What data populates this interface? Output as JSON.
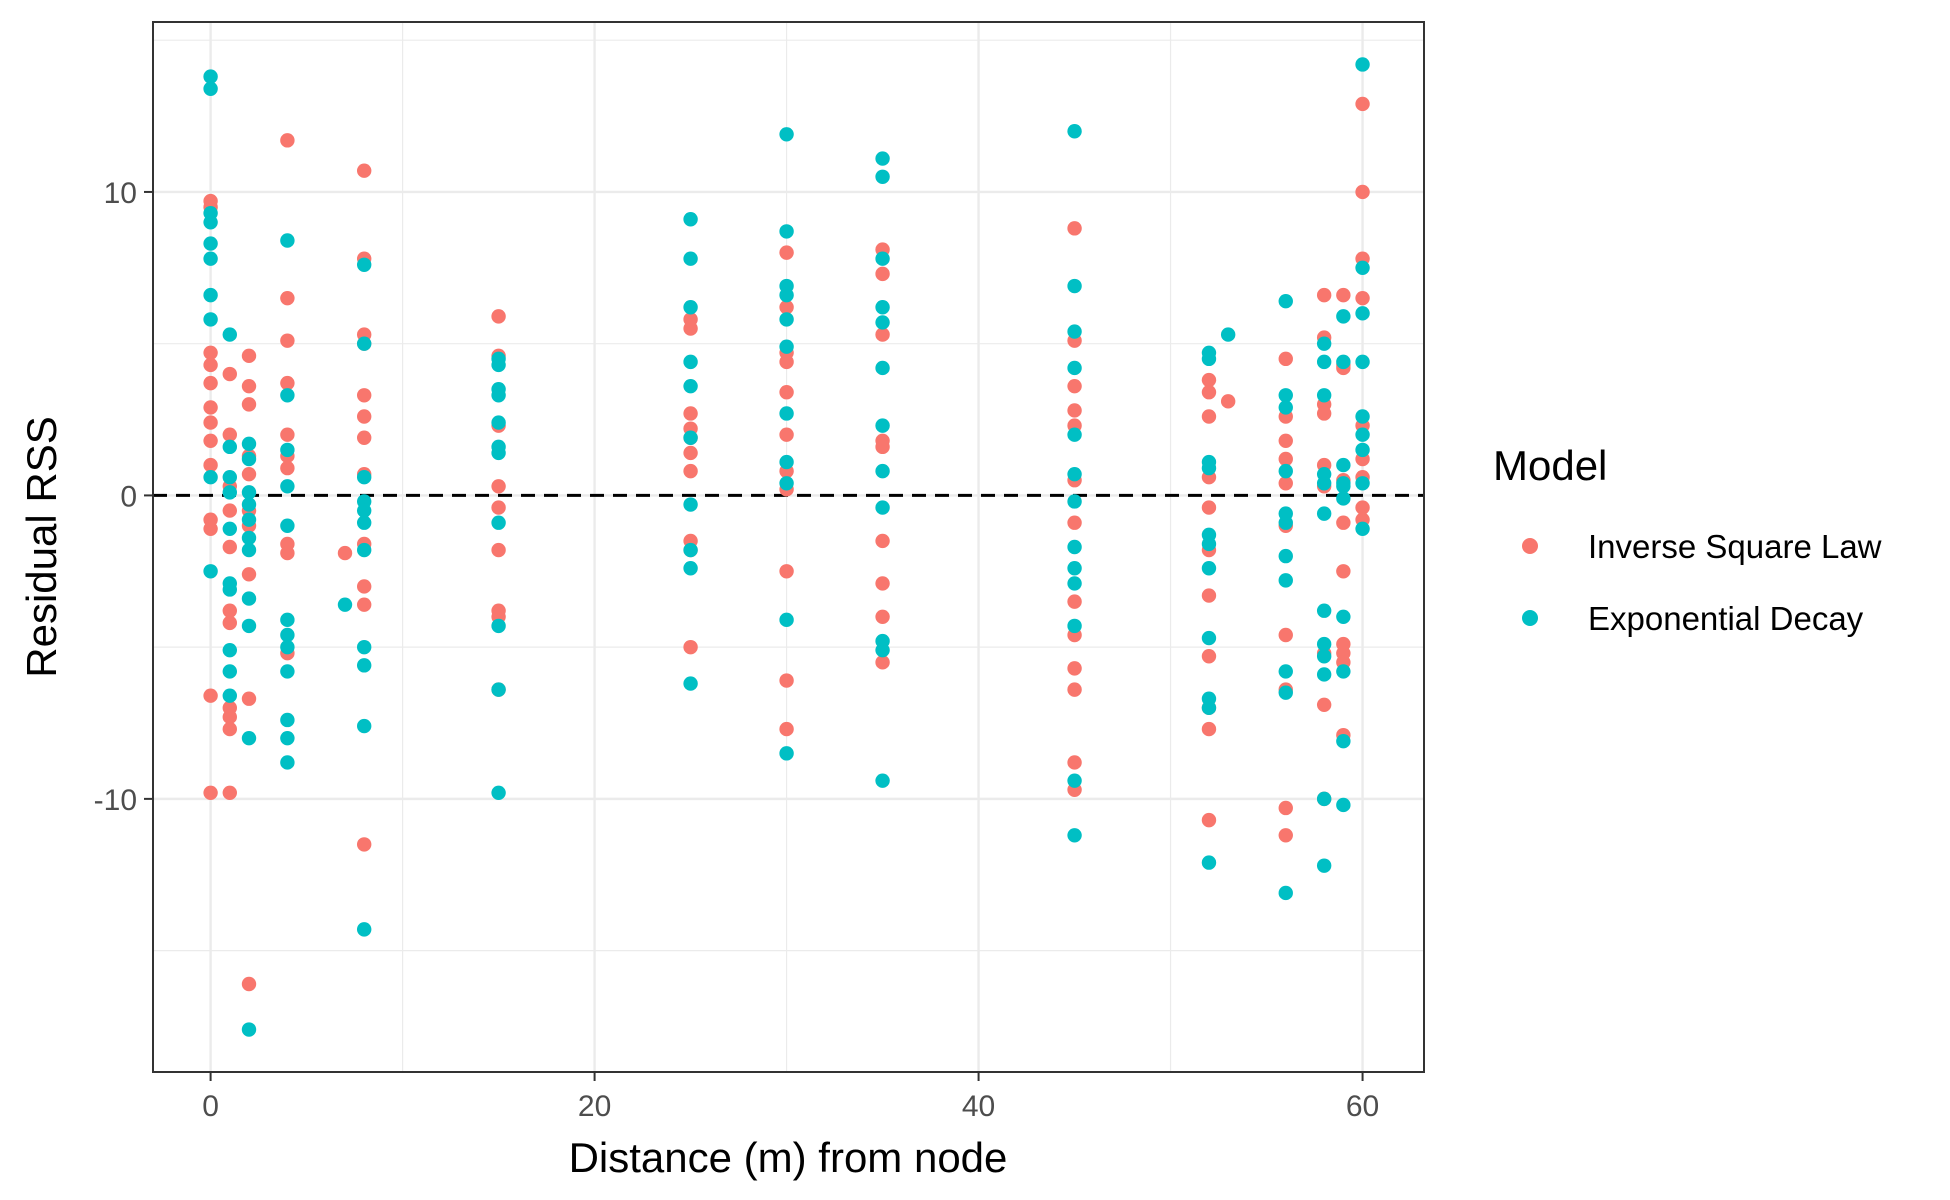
{
  "chart_data": {
    "type": "scatter",
    "title": "",
    "xlabel": "Distance (m) from node",
    "ylabel": "Residual RSS",
    "xlim": [
      -3,
      63.2
    ],
    "ylim": [
      -19,
      15.6
    ],
    "x_ticks": [
      0,
      20,
      40,
      60
    ],
    "y_ticks": [
      -10,
      0,
      10
    ],
    "x_tick_labels": [
      "0",
      "20",
      "40",
      "60"
    ],
    "y_tick_labels": [
      "-10",
      "0",
      "10"
    ],
    "grid": true,
    "reference_line": {
      "y": 0,
      "style": "dashed",
      "color": "#000000"
    },
    "legend": {
      "title": "Model",
      "placement": "right"
    },
    "series": [
      {
        "name": "Inverse Square Law",
        "color": "#F8766D",
        "points": [
          [
            0,
            9.7
          ],
          [
            0,
            9.5
          ],
          [
            0,
            4.7
          ],
          [
            0,
            4.3
          ],
          [
            0,
            3.7
          ],
          [
            0,
            2.9
          ],
          [
            0,
            2.4
          ],
          [
            0,
            1.8
          ],
          [
            0,
            1.0
          ],
          [
            0,
            -0.8
          ],
          [
            0,
            -1.1
          ],
          [
            0,
            -6.6
          ],
          [
            0,
            -9.8
          ],
          [
            1,
            4.0
          ],
          [
            1,
            2.0
          ],
          [
            1,
            0.3
          ],
          [
            1,
            -0.5
          ],
          [
            1,
            -1.7
          ],
          [
            1,
            -3.8
          ],
          [
            1,
            -4.2
          ],
          [
            1,
            -7.0
          ],
          [
            1,
            -7.3
          ],
          [
            1,
            -7.7
          ],
          [
            1,
            -9.8
          ],
          [
            2,
            4.6
          ],
          [
            2,
            3.6
          ],
          [
            2,
            3.0
          ],
          [
            2,
            1.3
          ],
          [
            2,
            0.7
          ],
          [
            2,
            -0.5
          ],
          [
            2,
            -1.0
          ],
          [
            2,
            -2.6
          ],
          [
            2,
            -6.7
          ],
          [
            2,
            -16.1
          ],
          [
            4,
            11.7
          ],
          [
            4,
            6.5
          ],
          [
            4,
            5.1
          ],
          [
            4,
            3.7
          ],
          [
            4,
            2.0
          ],
          [
            4,
            1.3
          ],
          [
            4,
            0.9
          ],
          [
            4,
            -1.6
          ],
          [
            4,
            -1.9
          ],
          [
            4,
            -5.2
          ],
          [
            7,
            -1.9
          ],
          [
            8,
            10.7
          ],
          [
            8,
            7.8
          ],
          [
            8,
            5.3
          ],
          [
            8,
            5.0
          ],
          [
            8,
            3.3
          ],
          [
            8,
            2.6
          ],
          [
            8,
            1.9
          ],
          [
            8,
            0.7
          ],
          [
            8,
            -1.6
          ],
          [
            8,
            -3.0
          ],
          [
            8,
            -3.6
          ],
          [
            8,
            -11.5
          ],
          [
            15,
            5.9
          ],
          [
            15,
            4.6
          ],
          [
            15,
            2.3
          ],
          [
            15,
            0.3
          ],
          [
            15,
            -0.4
          ],
          [
            15,
            -1.8
          ],
          [
            15,
            -3.8
          ],
          [
            15,
            -4.0
          ],
          [
            15,
            -6.4
          ],
          [
            25,
            5.8
          ],
          [
            25,
            5.5
          ],
          [
            25,
            2.7
          ],
          [
            25,
            2.2
          ],
          [
            25,
            1.9
          ],
          [
            25,
            1.4
          ],
          [
            25,
            0.8
          ],
          [
            25,
            -1.5
          ],
          [
            25,
            -1.8
          ],
          [
            25,
            -5.0
          ],
          [
            30,
            8.0
          ],
          [
            30,
            6.2
          ],
          [
            30,
            4.7
          ],
          [
            30,
            4.4
          ],
          [
            30,
            3.4
          ],
          [
            30,
            2.0
          ],
          [
            30,
            0.8
          ],
          [
            30,
            0.2
          ],
          [
            30,
            -2.5
          ],
          [
            30,
            -6.1
          ],
          [
            30,
            -7.7
          ],
          [
            35,
            8.1
          ],
          [
            35,
            7.3
          ],
          [
            35,
            5.3
          ],
          [
            35,
            1.8
          ],
          [
            35,
            1.6
          ],
          [
            35,
            -1.5
          ],
          [
            35,
            -2.9
          ],
          [
            35,
            -4.0
          ],
          [
            35,
            -5.5
          ],
          [
            45,
            8.8
          ],
          [
            45,
            5.1
          ],
          [
            45,
            3.6
          ],
          [
            45,
            2.8
          ],
          [
            45,
            2.3
          ],
          [
            45,
            0.5
          ],
          [
            45,
            -0.9
          ],
          [
            45,
            -3.5
          ],
          [
            45,
            -4.6
          ],
          [
            45,
            -5.7
          ],
          [
            45,
            -6.4
          ],
          [
            45,
            -8.8
          ],
          [
            45,
            -9.7
          ],
          [
            52,
            3.8
          ],
          [
            52,
            3.4
          ],
          [
            52,
            2.6
          ],
          [
            52,
            0.6
          ],
          [
            52,
            -0.4
          ],
          [
            52,
            -1.8
          ],
          [
            52,
            -3.3
          ],
          [
            52,
            -5.3
          ],
          [
            52,
            -7.0
          ],
          [
            52,
            -7.7
          ],
          [
            52,
            -10.7
          ],
          [
            53,
            3.1
          ],
          [
            56,
            4.5
          ],
          [
            56,
            2.6
          ],
          [
            56,
            1.8
          ],
          [
            56,
            1.2
          ],
          [
            56,
            0.4
          ],
          [
            56,
            -1.0
          ],
          [
            56,
            -4.6
          ],
          [
            56,
            -6.4
          ],
          [
            56,
            -10.3
          ],
          [
            56,
            -11.2
          ],
          [
            58,
            6.6
          ],
          [
            58,
            5.2
          ],
          [
            58,
            3.0
          ],
          [
            58,
            2.7
          ],
          [
            58,
            1.0
          ],
          [
            58,
            0.3
          ],
          [
            58,
            -5.2
          ],
          [
            58,
            -6.9
          ],
          [
            58,
            -10.0
          ],
          [
            59,
            6.6
          ],
          [
            59,
            4.3
          ],
          [
            59,
            4.2
          ],
          [
            59,
            0.5
          ],
          [
            59,
            -0.9
          ],
          [
            59,
            -2.5
          ],
          [
            59,
            -4.9
          ],
          [
            59,
            -5.2
          ],
          [
            59,
            -5.5
          ],
          [
            59,
            -7.9
          ],
          [
            60,
            12.9
          ],
          [
            60,
            10.0
          ],
          [
            60,
            7.8
          ],
          [
            60,
            6.5
          ],
          [
            60,
            2.3
          ],
          [
            60,
            1.2
          ],
          [
            60,
            0.6
          ],
          [
            60,
            -0.4
          ],
          [
            60,
            -0.8
          ]
        ]
      },
      {
        "name": "Exponential Decay",
        "color": "#00BFC4",
        "points": [
          [
            0,
            13.8
          ],
          [
            0,
            13.4
          ],
          [
            0,
            9.3
          ],
          [
            0,
            9.0
          ],
          [
            0,
            8.3
          ],
          [
            0,
            7.8
          ],
          [
            0,
            6.6
          ],
          [
            0,
            5.8
          ],
          [
            0,
            0.6
          ],
          [
            0,
            -2.5
          ],
          [
            1,
            5.3
          ],
          [
            1,
            1.6
          ],
          [
            1,
            0.6
          ],
          [
            1,
            0.1
          ],
          [
            1,
            -1.1
          ],
          [
            1,
            -2.9
          ],
          [
            1,
            -3.1
          ],
          [
            1,
            -5.1
          ],
          [
            1,
            -5.8
          ],
          [
            1,
            -6.6
          ],
          [
            2,
            1.7
          ],
          [
            2,
            1.2
          ],
          [
            2,
            0.1
          ],
          [
            2,
            -0.3
          ],
          [
            2,
            -0.8
          ],
          [
            2,
            -1.4
          ],
          [
            2,
            -1.8
          ],
          [
            2,
            -3.4
          ],
          [
            2,
            -4.3
          ],
          [
            2,
            -8.0
          ],
          [
            2,
            -17.6
          ],
          [
            4,
            8.4
          ],
          [
            4,
            3.3
          ],
          [
            4,
            1.5
          ],
          [
            4,
            0.3
          ],
          [
            4,
            -1.0
          ],
          [
            4,
            -4.1
          ],
          [
            4,
            -4.6
          ],
          [
            4,
            -5.0
          ],
          [
            4,
            -5.8
          ],
          [
            4,
            -7.4
          ],
          [
            4,
            -8.0
          ],
          [
            4,
            -8.8
          ],
          [
            7,
            -3.6
          ],
          [
            8,
            7.6
          ],
          [
            8,
            5.0
          ],
          [
            8,
            0.6
          ],
          [
            8,
            -0.2
          ],
          [
            8,
            -0.5
          ],
          [
            8,
            -0.9
          ],
          [
            8,
            -1.8
          ],
          [
            8,
            -5.0
          ],
          [
            8,
            -5.6
          ],
          [
            8,
            -7.6
          ],
          [
            8,
            -14.3
          ],
          [
            15,
            4.5
          ],
          [
            15,
            4.3
          ],
          [
            15,
            3.5
          ],
          [
            15,
            3.3
          ],
          [
            15,
            2.4
          ],
          [
            15,
            1.6
          ],
          [
            15,
            1.4
          ],
          [
            15,
            -0.9
          ],
          [
            15,
            -4.3
          ],
          [
            15,
            -6.4
          ],
          [
            15,
            -9.8
          ],
          [
            25,
            9.1
          ],
          [
            25,
            7.8
          ],
          [
            25,
            6.2
          ],
          [
            25,
            4.4
          ],
          [
            25,
            3.6
          ],
          [
            25,
            1.9
          ],
          [
            25,
            -0.3
          ],
          [
            25,
            -1.8
          ],
          [
            25,
            -2.4
          ],
          [
            25,
            -6.2
          ],
          [
            30,
            11.9
          ],
          [
            30,
            8.7
          ],
          [
            30,
            6.9
          ],
          [
            30,
            6.6
          ],
          [
            30,
            5.8
          ],
          [
            30,
            4.9
          ],
          [
            30,
            2.7
          ],
          [
            30,
            1.1
          ],
          [
            30,
            0.4
          ],
          [
            30,
            -4.1
          ],
          [
            30,
            -8.5
          ],
          [
            35,
            11.1
          ],
          [
            35,
            10.5
          ],
          [
            35,
            7.8
          ],
          [
            35,
            6.2
          ],
          [
            35,
            5.7
          ],
          [
            35,
            4.2
          ],
          [
            35,
            2.3
          ],
          [
            35,
            0.8
          ],
          [
            35,
            -0.4
          ],
          [
            35,
            -4.8
          ],
          [
            35,
            -5.1
          ],
          [
            35,
            -9.4
          ],
          [
            45,
            12.0
          ],
          [
            45,
            6.9
          ],
          [
            45,
            5.4
          ],
          [
            45,
            4.2
          ],
          [
            45,
            2.0
          ],
          [
            45,
            0.7
          ],
          [
            45,
            -0.2
          ],
          [
            45,
            -1.7
          ],
          [
            45,
            -2.4
          ],
          [
            45,
            -2.9
          ],
          [
            45,
            -4.3
          ],
          [
            45,
            -9.4
          ],
          [
            45,
            -11.2
          ],
          [
            52,
            4.7
          ],
          [
            52,
            4.5
          ],
          [
            52,
            1.1
          ],
          [
            52,
            0.9
          ],
          [
            52,
            -1.3
          ],
          [
            52,
            -1.6
          ],
          [
            52,
            -2.4
          ],
          [
            52,
            -4.7
          ],
          [
            52,
            -6.7
          ],
          [
            52,
            -7.0
          ],
          [
            52,
            -12.1
          ],
          [
            53,
            5.3
          ],
          [
            56,
            6.4
          ],
          [
            56,
            3.3
          ],
          [
            56,
            2.9
          ],
          [
            56,
            0.8
          ],
          [
            56,
            -0.6
          ],
          [
            56,
            -0.9
          ],
          [
            56,
            -2.0
          ],
          [
            56,
            -2.8
          ],
          [
            56,
            -5.8
          ],
          [
            56,
            -6.5
          ],
          [
            56,
            -13.1
          ],
          [
            58,
            5.0
          ],
          [
            58,
            4.4
          ],
          [
            58,
            3.3
          ],
          [
            58,
            0.7
          ],
          [
            58,
            0.4
          ],
          [
            58,
            -0.6
          ],
          [
            58,
            -3.8
          ],
          [
            58,
            -4.9
          ],
          [
            58,
            -5.3
          ],
          [
            58,
            -5.9
          ],
          [
            58,
            -10.0
          ],
          [
            58,
            -12.2
          ],
          [
            59,
            5.9
          ],
          [
            59,
            4.4
          ],
          [
            59,
            1.0
          ],
          [
            59,
            0.4
          ],
          [
            59,
            0.3
          ],
          [
            59,
            -0.1
          ],
          [
            59,
            -4.0
          ],
          [
            59,
            -5.8
          ],
          [
            59,
            -8.1
          ],
          [
            59,
            -10.2
          ],
          [
            60,
            14.2
          ],
          [
            60,
            7.5
          ],
          [
            60,
            6.0
          ],
          [
            60,
            4.4
          ],
          [
            60,
            2.6
          ],
          [
            60,
            2.0
          ],
          [
            60,
            1.5
          ],
          [
            60,
            0.4
          ],
          [
            60,
            -1.1
          ]
        ]
      }
    ]
  }
}
